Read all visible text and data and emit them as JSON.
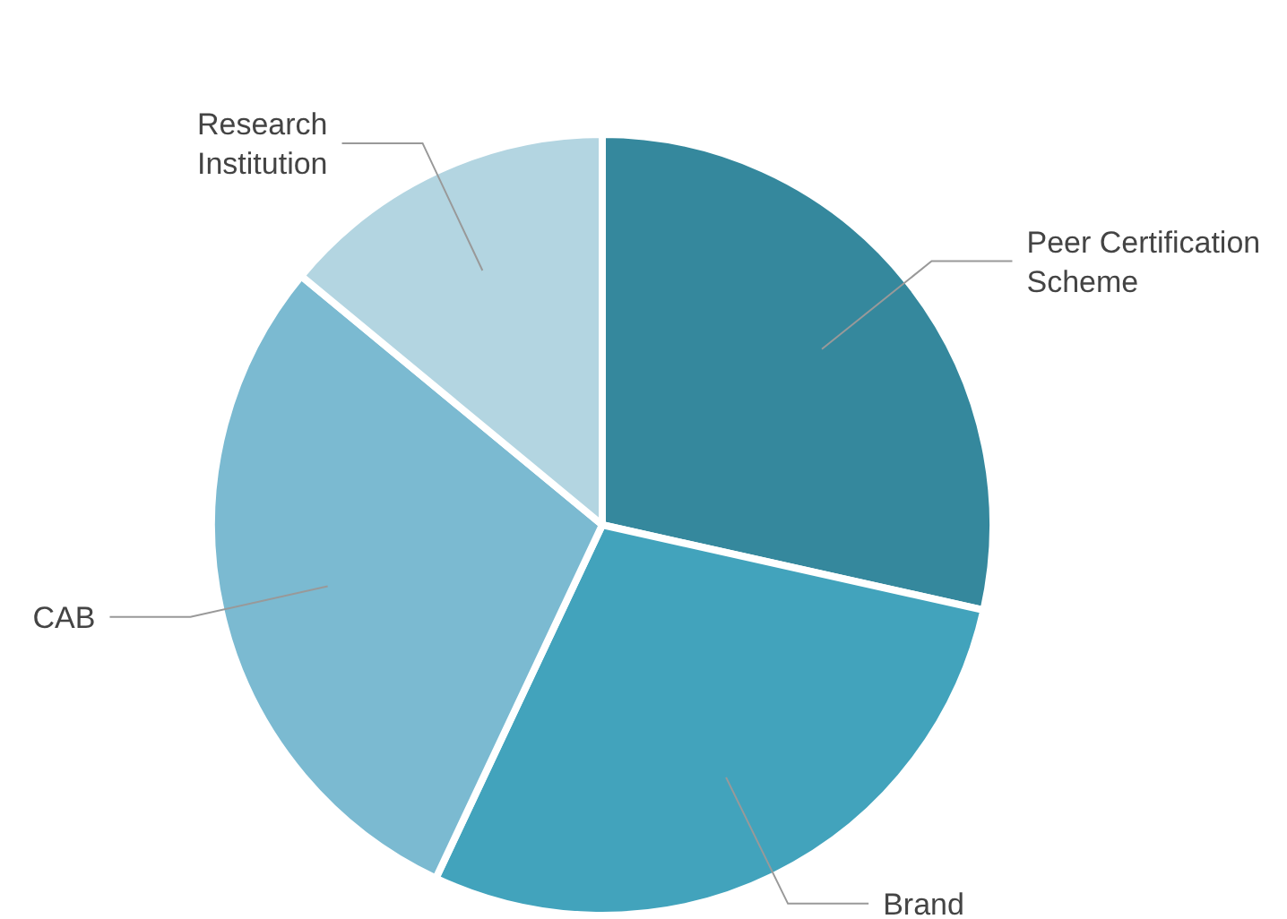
{
  "chart_data": {
    "type": "pie",
    "categories": [
      "Peer Certification Scheme",
      "Brand",
      "CAB",
      "Research Institution"
    ],
    "values": [
      28.5,
      28.5,
      29,
      14
    ],
    "colors": [
      "#35889d",
      "#42a3bc",
      "#7bbad1",
      "#b3d5e1"
    ]
  }
}
